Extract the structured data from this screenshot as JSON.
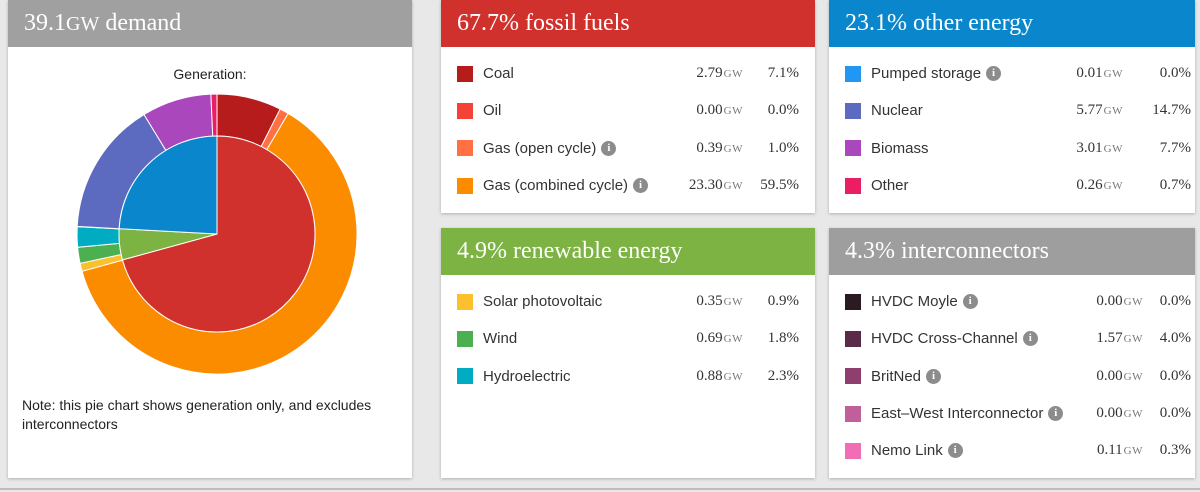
{
  "demand": {
    "value": "39.1",
    "unit": "GW",
    "label": "demand",
    "header_color": "#a0a0a0",
    "chart_title": "Generation:",
    "note": "Note: this pie chart shows generation only, and excludes interconnectors"
  },
  "fossil": {
    "title": "67.7% fossil fuels",
    "color": "#d0312d",
    "items": [
      {
        "label": "Coal",
        "gw": "2.79",
        "unit": "GW",
        "pct": "7.1%",
        "color": "#b71c1c",
        "info": false
      },
      {
        "label": "Oil",
        "gw": "0.00",
        "unit": "GW",
        "pct": "0.0%",
        "color": "#f44336",
        "info": false
      },
      {
        "label": "Gas (open cycle)",
        "gw": "0.39",
        "unit": "GW",
        "pct": "1.0%",
        "color": "#ff7043",
        "info": true
      },
      {
        "label": "Gas (combined cycle)",
        "gw": "23.30",
        "unit": "GW",
        "pct": "59.5%",
        "color": "#fb8c00",
        "info": true
      }
    ]
  },
  "other": {
    "title": "23.1% other energy",
    "color": "#0a86cc",
    "items": [
      {
        "label": "Pumped storage",
        "gw": "0.01",
        "unit": "GW",
        "pct": "0.0%",
        "color": "#2196f3",
        "info": true
      },
      {
        "label": "Nuclear",
        "gw": "5.77",
        "unit": "GW",
        "pct": "14.7%",
        "color": "#5c6bc0",
        "info": false
      },
      {
        "label": "Biomass",
        "gw": "3.01",
        "unit": "GW",
        "pct": "7.7%",
        "color": "#ab47bc",
        "info": false
      },
      {
        "label": "Other",
        "gw": "0.26",
        "unit": "GW",
        "pct": "0.7%",
        "color": "#e91e63",
        "info": false
      }
    ]
  },
  "renewable": {
    "title": "4.9% renewable energy",
    "color": "#7cb342",
    "items": [
      {
        "label": "Solar photovoltaic",
        "gw": "0.35",
        "unit": "GW",
        "pct": "0.9%",
        "color": "#fbc02d",
        "info": false
      },
      {
        "label": "Wind",
        "gw": "0.69",
        "unit": "GW",
        "pct": "1.8%",
        "color": "#4caf50",
        "info": false
      },
      {
        "label": "Hydroelectric",
        "gw": "0.88",
        "unit": "GW",
        "pct": "2.3%",
        "color": "#00acc1",
        "info": false
      }
    ]
  },
  "interconnectors": {
    "title": "4.3% interconnectors",
    "color": "#9e9e9e",
    "items": [
      {
        "label": "HVDC Moyle",
        "gw": "0.00",
        "unit": "GW",
        "pct": "0.0%",
        "color": "#2b1a22",
        "info": true
      },
      {
        "label": "HVDC Cross-Channel",
        "gw": "1.57",
        "unit": "GW",
        "pct": "4.0%",
        "color": "#5a2a48",
        "info": true
      },
      {
        "label": "BritNed",
        "gw": "0.00",
        "unit": "GW",
        "pct": "0.0%",
        "color": "#8e3f6e",
        "info": true
      },
      {
        "label": "East–West Interconnector",
        "gw": "0.00",
        "unit": "GW",
        "pct": "0.0%",
        "color": "#c0609a",
        "info": true
      },
      {
        "label": "Nemo Link",
        "gw": "0.11",
        "unit": "GW",
        "pct": "0.3%",
        "color": "#f06eb4",
        "info": true
      }
    ]
  },
  "chart_data": {
    "type": "pie",
    "inner": [
      {
        "name": "fossil fuels",
        "value": 67.7,
        "color": "#d0312d"
      },
      {
        "name": "renewable energy",
        "value": 4.9,
        "color": "#7cb342"
      },
      {
        "name": "other energy",
        "value": 23.1,
        "color": "#0a86cc"
      }
    ],
    "outer": [
      {
        "name": "Coal",
        "value": 2.79,
        "color": "#b71c1c"
      },
      {
        "name": "Oil",
        "value": 0.0,
        "color": "#f44336"
      },
      {
        "name": "Gas (open cycle)",
        "value": 0.39,
        "color": "#ff7043"
      },
      {
        "name": "Gas (combined cycle)",
        "value": 23.3,
        "color": "#fb8c00"
      },
      {
        "name": "Solar photovoltaic",
        "value": 0.35,
        "color": "#fbc02d"
      },
      {
        "name": "Wind",
        "value": 0.69,
        "color": "#4caf50"
      },
      {
        "name": "Hydroelectric",
        "value": 0.88,
        "color": "#00acc1"
      },
      {
        "name": "Pumped storage",
        "value": 0.01,
        "color": "#2196f3"
      },
      {
        "name": "Nuclear",
        "value": 5.77,
        "color": "#5c6bc0"
      },
      {
        "name": "Biomass",
        "value": 3.01,
        "color": "#ab47bc"
      },
      {
        "name": "Other",
        "value": 0.26,
        "color": "#e91e63"
      }
    ]
  }
}
